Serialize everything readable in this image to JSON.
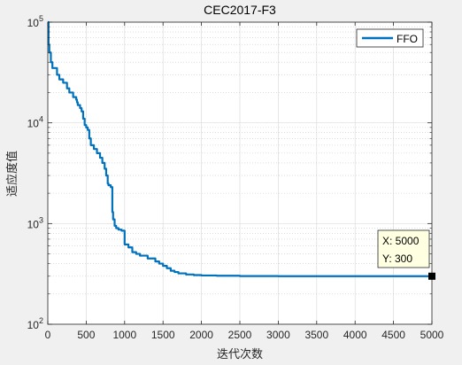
{
  "chart_data": {
    "type": "line",
    "title": "CEC2017-F3",
    "xlabel": "迭代次数",
    "ylabel": "适应度值",
    "xlim": [
      0,
      5000
    ],
    "ylim": [
      100,
      100000
    ],
    "yscale": "log",
    "grid": true,
    "legend_position": "top-right",
    "x_ticks": [
      "0",
      "500",
      "1000",
      "1500",
      "2000",
      "2500",
      "3000",
      "3500",
      "4000",
      "4500",
      "5000"
    ],
    "y_ticks": [
      {
        "base": "10",
        "exp": "2",
        "value": 100
      },
      {
        "base": "10",
        "exp": "3",
        "value": 1000
      },
      {
        "base": "10",
        "exp": "4",
        "value": 10000
      },
      {
        "base": "10",
        "exp": "5",
        "value": 100000
      }
    ],
    "series": [
      {
        "name": "FFO",
        "color": "#0072bd",
        "x": [
          0,
          10,
          20,
          40,
          60,
          120,
          150,
          200,
          250,
          280,
          330,
          370,
          380,
          390,
          420,
          440,
          460,
          480,
          500,
          520,
          540,
          560,
          600,
          640,
          680,
          710,
          740,
          760,
          780,
          790,
          820,
          840,
          850,
          870,
          890,
          920,
          960,
          1000,
          1050,
          1100,
          1150,
          1200,
          1300,
          1400,
          1450,
          1500,
          1550,
          1600,
          1650,
          1700,
          1800,
          1900,
          2000,
          2200,
          2500,
          3000,
          4000,
          5000
        ],
        "y": [
          100000,
          60000,
          50000,
          40000,
          35000,
          30000,
          27000,
          25000,
          22000,
          20000,
          18000,
          17000,
          16000,
          15000,
          14000,
          13000,
          11000,
          9500,
          9000,
          8500,
          7000,
          6000,
          5500,
          5000,
          4500,
          4000,
          3500,
          3000,
          2500,
          2400,
          2300,
          1300,
          1100,
          950,
          900,
          870,
          850,
          620,
          580,
          520,
          500,
          480,
          450,
          420,
          400,
          380,
          360,
          340,
          330,
          320,
          312,
          308,
          305,
          303,
          301,
          300,
          300,
          300
        ]
      }
    ],
    "datatip": {
      "x_label": "X: 5000",
      "y_label": "Y: 300",
      "x": 5000,
      "y": 300
    }
  }
}
